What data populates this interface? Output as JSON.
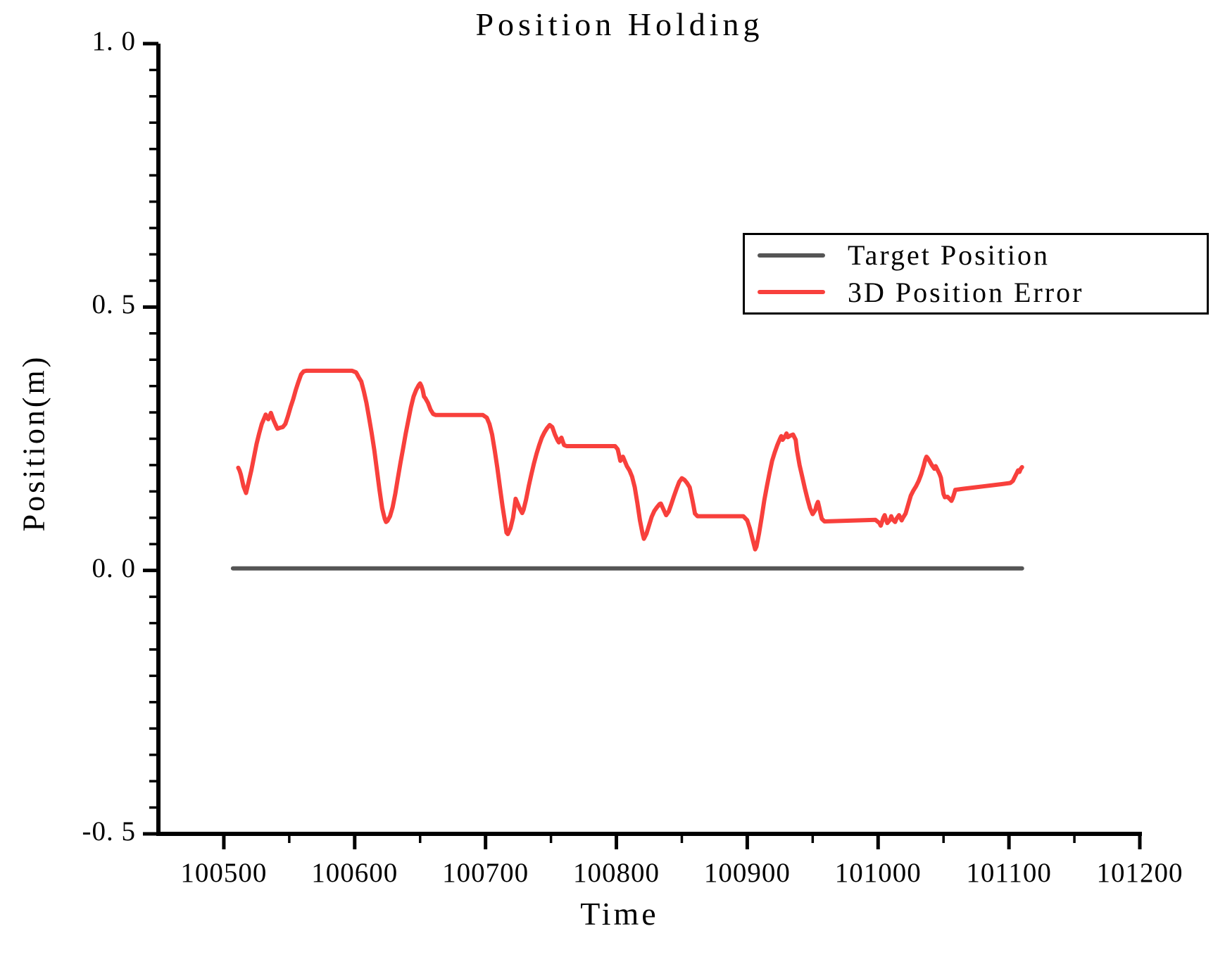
{
  "chart_data": {
    "type": "line",
    "title": "Position Holding",
    "xlabel": "Time",
    "ylabel": "Position(m)",
    "xlim": [
      100450,
      101200
    ],
    "ylim": [
      -0.5,
      1.0
    ],
    "grid": false,
    "legend_position": "upper right",
    "x_major_ticks": [
      100500,
      100600,
      100700,
      100800,
      100900,
      101000,
      101100,
      101200
    ],
    "x_tick_labels": [
      "100500",
      "100600",
      "100700",
      "100800",
      "100900",
      "101000",
      "101100",
      "101200"
    ],
    "x_minor_step": 50,
    "y_major_ticks": [
      1.0,
      0.5,
      0.0,
      -0.5
    ],
    "y_tick_labels": [
      "1. 0",
      "0. 5",
      "0. 0",
      "-0. 5"
    ],
    "y_minor_step": 0.05,
    "axis_color": "#000000",
    "series": [
      {
        "name": "Target Position",
        "color": "#555555",
        "line_width": 6,
        "points": [
          [
            100507,
            0.004
          ],
          [
            101110,
            0.004
          ]
        ]
      },
      {
        "name": "3D Position Error",
        "color": "#f8403c",
        "line_width": 6,
        "points": [
          [
            100511,
            0.195
          ],
          [
            100512,
            0.19
          ],
          [
            100513,
            0.182
          ],
          [
            100515,
            0.16
          ],
          [
            100517,
            0.147
          ],
          [
            100519,
            0.168
          ],
          [
            100521,
            0.19
          ],
          [
            100523,
            0.215
          ],
          [
            100525,
            0.24
          ],
          [
            100527,
            0.26
          ],
          [
            100529,
            0.278
          ],
          [
            100531,
            0.29
          ],
          [
            100532,
            0.296
          ],
          [
            100533,
            0.29
          ],
          [
            100534,
            0.287
          ],
          [
            100535,
            0.293
          ],
          [
            100536,
            0.299
          ],
          [
            100537,
            0.292
          ],
          [
            100538,
            0.285
          ],
          [
            100540,
            0.274
          ],
          [
            100541,
            0.269
          ],
          [
            100543,
            0.271
          ],
          [
            100545,
            0.272
          ],
          [
            100547,
            0.278
          ],
          [
            100549,
            0.293
          ],
          [
            100551,
            0.31
          ],
          [
            100553,
            0.325
          ],
          [
            100555,
            0.343
          ],
          [
            100557,
            0.358
          ],
          [
            100559,
            0.372
          ],
          [
            100561,
            0.378
          ],
          [
            100563,
            0.379
          ],
          [
            100598,
            0.379
          ],
          [
            100601,
            0.376
          ],
          [
            100602,
            0.372
          ],
          [
            100603,
            0.367
          ],
          [
            100605,
            0.359
          ],
          [
            100607,
            0.34
          ],
          [
            100609,
            0.318
          ],
          [
            100611,
            0.29
          ],
          [
            100613,
            0.26
          ],
          [
            100615,
            0.228
          ],
          [
            100617,
            0.19
          ],
          [
            100619,
            0.152
          ],
          [
            100621,
            0.118
          ],
          [
            100623,
            0.098
          ],
          [
            100624,
            0.092
          ],
          [
            100625,
            0.094
          ],
          [
            100627,
            0.103
          ],
          [
            100629,
            0.12
          ],
          [
            100631,
            0.145
          ],
          [
            100633,
            0.175
          ],
          [
            100635,
            0.205
          ],
          [
            100637,
            0.232
          ],
          [
            100639,
            0.26
          ],
          [
            100641,
            0.285
          ],
          [
            100643,
            0.31
          ],
          [
            100645,
            0.33
          ],
          [
            100647,
            0.343
          ],
          [
            100649,
            0.352
          ],
          [
            100650,
            0.355
          ],
          [
            100651,
            0.35
          ],
          [
            100652,
            0.342
          ],
          [
            100653,
            0.33
          ],
          [
            100654,
            0.327
          ],
          [
            100656,
            0.318
          ],
          [
            100658,
            0.305
          ],
          [
            100660,
            0.297
          ],
          [
            100662,
            0.295
          ],
          [
            100698,
            0.295
          ],
          [
            100701,
            0.29
          ],
          [
            100703,
            0.278
          ],
          [
            100705,
            0.258
          ],
          [
            100707,
            0.228
          ],
          [
            100709,
            0.195
          ],
          [
            100711,
            0.158
          ],
          [
            100713,
            0.122
          ],
          [
            100715,
            0.09
          ],
          [
            100716,
            0.072
          ],
          [
            100717,
            0.069
          ],
          [
            100719,
            0.08
          ],
          [
            100721,
            0.1
          ],
          [
            100722,
            0.118
          ],
          [
            100723,
            0.136
          ],
          [
            100724,
            0.13
          ],
          [
            100726,
            0.118
          ],
          [
            100728,
            0.109
          ],
          [
            100729,
            0.115
          ],
          [
            100731,
            0.135
          ],
          [
            100733,
            0.16
          ],
          [
            100735,
            0.182
          ],
          [
            100737,
            0.203
          ],
          [
            100739,
            0.222
          ],
          [
            100741,
            0.238
          ],
          [
            100743,
            0.252
          ],
          [
            100745,
            0.262
          ],
          [
            100747,
            0.27
          ],
          [
            100749,
            0.276
          ],
          [
            100751,
            0.272
          ],
          [
            100753,
            0.258
          ],
          [
            100755,
            0.247
          ],
          [
            100756,
            0.243
          ],
          [
            100757,
            0.249
          ],
          [
            100758,
            0.252
          ],
          [
            100759,
            0.245
          ],
          [
            100760,
            0.238
          ],
          [
            100762,
            0.236
          ],
          [
            100799,
            0.236
          ],
          [
            100801,
            0.23
          ],
          [
            100802,
            0.219
          ],
          [
            100803,
            0.208
          ],
          [
            100804,
            0.212
          ],
          [
            100805,
            0.216
          ],
          [
            100806,
            0.21
          ],
          [
            100808,
            0.198
          ],
          [
            100810,
            0.19
          ],
          [
            100812,
            0.178
          ],
          [
            100814,
            0.158
          ],
          [
            100816,
            0.128
          ],
          [
            100818,
            0.095
          ],
          [
            100820,
            0.07
          ],
          [
            100821,
            0.06
          ],
          [
            100823,
            0.07
          ],
          [
            100825,
            0.086
          ],
          [
            100827,
            0.102
          ],
          [
            100829,
            0.113
          ],
          [
            100831,
            0.12
          ],
          [
            100833,
            0.126
          ],
          [
            100834,
            0.127
          ],
          [
            100836,
            0.116
          ],
          [
            100838,
            0.105
          ],
          [
            100840,
            0.112
          ],
          [
            100842,
            0.126
          ],
          [
            100844,
            0.141
          ],
          [
            100846,
            0.155
          ],
          [
            100848,
            0.168
          ],
          [
            100850,
            0.175
          ],
          [
            100852,
            0.172
          ],
          [
            100854,
            0.166
          ],
          [
            100856,
            0.158
          ],
          [
            100858,
            0.135
          ],
          [
            100859,
            0.122
          ],
          [
            100860,
            0.108
          ],
          [
            100862,
            0.103
          ],
          [
            100897,
            0.103
          ],
          [
            100900,
            0.095
          ],
          [
            100902,
            0.08
          ],
          [
            100904,
            0.06
          ],
          [
            100906,
            0.04
          ],
          [
            100907,
            0.045
          ],
          [
            100909,
            0.07
          ],
          [
            100911,
            0.1
          ],
          [
            100913,
            0.133
          ],
          [
            100915,
            0.16
          ],
          [
            100917,
            0.185
          ],
          [
            100919,
            0.208
          ],
          [
            100921,
            0.224
          ],
          [
            100923,
            0.238
          ],
          [
            100925,
            0.25
          ],
          [
            100926,
            0.255
          ],
          [
            100927,
            0.248
          ],
          [
            100929,
            0.255
          ],
          [
            100930,
            0.26
          ],
          [
            100931,
            0.253
          ],
          [
            100933,
            0.256
          ],
          [
            100935,
            0.258
          ],
          [
            100936,
            0.253
          ],
          [
            100937,
            0.248
          ],
          [
            100938,
            0.228
          ],
          [
            100940,
            0.2
          ],
          [
            100942,
            0.178
          ],
          [
            100944,
            0.156
          ],
          [
            100946,
            0.136
          ],
          [
            100948,
            0.118
          ],
          [
            100950,
            0.107
          ],
          [
            100952,
            0.115
          ],
          [
            100953,
            0.124
          ],
          [
            100954,
            0.13
          ],
          [
            100955,
            0.12
          ],
          [
            100956,
            0.108
          ],
          [
            100957,
            0.098
          ],
          [
            100959,
            0.093
          ],
          [
            100998,
            0.096
          ],
          [
            101001,
            0.09
          ],
          [
            101002,
            0.085
          ],
          [
            101003,
            0.092
          ],
          [
            101004,
            0.1
          ],
          [
            101005,
            0.105
          ],
          [
            101006,
            0.097
          ],
          [
            101007,
            0.09
          ],
          [
            101009,
            0.096
          ],
          [
            101010,
            0.103
          ],
          [
            101011,
            0.097
          ],
          [
            101013,
            0.092
          ],
          [
            101014,
            0.098
          ],
          [
            101016,
            0.105
          ],
          [
            101017,
            0.1
          ],
          [
            101018,
            0.095
          ],
          [
            101019,
            0.1
          ],
          [
            101021,
            0.108
          ],
          [
            101023,
            0.125
          ],
          [
            101025,
            0.142
          ],
          [
            101027,
            0.152
          ],
          [
            101029,
            0.16
          ],
          [
            101031,
            0.17
          ],
          [
            101033,
            0.183
          ],
          [
            101035,
            0.2
          ],
          [
            101036,
            0.21
          ],
          [
            101037,
            0.216
          ],
          [
            101038,
            0.213
          ],
          [
            101039,
            0.209
          ],
          [
            101041,
            0.2
          ],
          [
            101043,
            0.193
          ],
          [
            101044,
            0.198
          ],
          [
            101045,
            0.193
          ],
          [
            101047,
            0.183
          ],
          [
            101048,
            0.176
          ],
          [
            101049,
            0.16
          ],
          [
            101050,
            0.145
          ],
          [
            101051,
            0.139
          ],
          [
            101053,
            0.14
          ],
          [
            101055,
            0.135
          ],
          [
            101056,
            0.132
          ],
          [
            101057,
            0.137
          ],
          [
            101058,
            0.145
          ],
          [
            101059,
            0.153
          ],
          [
            101065,
            0.155
          ],
          [
            101075,
            0.158
          ],
          [
            101085,
            0.161
          ],
          [
            101095,
            0.164
          ],
          [
            101101,
            0.166
          ],
          [
            101103,
            0.17
          ],
          [
            101105,
            0.18
          ],
          [
            101106,
            0.185
          ],
          [
            101107,
            0.19
          ],
          [
            101108,
            0.187
          ],
          [
            101109,
            0.193
          ],
          [
            101110,
            0.196
          ]
        ]
      }
    ]
  }
}
